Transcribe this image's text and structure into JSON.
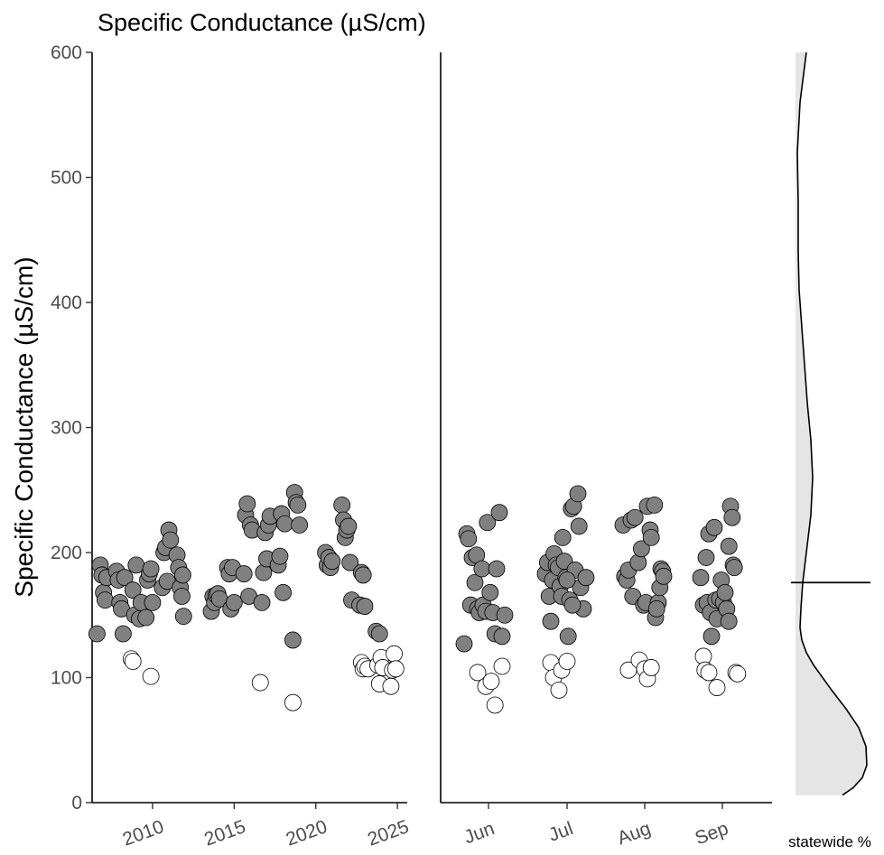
{
  "chart_data": {
    "type": "scatter",
    "title": "Specific Conductance (µS/cm)",
    "ylabel": "Specific Conductance (µS/cm)",
    "ylim": [
      0,
      600
    ],
    "yticks": [
      0,
      100,
      200,
      300,
      400,
      500,
      600
    ],
    "grid": false,
    "colors": {
      "filled": "#808080",
      "open": "#ffffff",
      "outline": "#000000",
      "density_fill": "#e5e5e5"
    },
    "panels": {
      "by_year": {
        "xlim": [
          2006.3,
          2025.6
        ],
        "xticks": [
          2010,
          2015,
          2020,
          2025
        ],
        "filled": [
          [
            2006.6,
            135
          ],
          [
            2006.8,
            190
          ],
          [
            2006.9,
            182
          ],
          [
            2007.0,
            168
          ],
          [
            2007.1,
            162
          ],
          [
            2007.2,
            180
          ],
          [
            2007.8,
            185
          ],
          [
            2007.9,
            178
          ],
          [
            2008.0,
            160
          ],
          [
            2008.1,
            155
          ],
          [
            2008.2,
            135
          ],
          [
            2008.3,
            180
          ],
          [
            2008.8,
            170
          ],
          [
            2008.9,
            150
          ],
          [
            2009.0,
            190
          ],
          [
            2009.2,
            147
          ],
          [
            2009.3,
            160
          ],
          [
            2009.6,
            148
          ],
          [
            2009.7,
            178
          ],
          [
            2009.8,
            183
          ],
          [
            2009.9,
            187
          ],
          [
            2010.0,
            160
          ],
          [
            2010.6,
            172
          ],
          [
            2010.7,
            200
          ],
          [
            2010.8,
            204
          ],
          [
            2010.9,
            177
          ],
          [
            2011.0,
            218
          ],
          [
            2011.1,
            210
          ],
          [
            2011.5,
            198
          ],
          [
            2011.6,
            188
          ],
          [
            2011.7,
            172
          ],
          [
            2011.8,
            165
          ],
          [
            2011.85,
            182
          ],
          [
            2011.9,
            149
          ],
          [
            2013.6,
            153
          ],
          [
            2013.7,
            165
          ],
          [
            2013.8,
            160
          ],
          [
            2013.9,
            166
          ],
          [
            2014.0,
            167
          ],
          [
            2014.1,
            163
          ],
          [
            2014.6,
            188
          ],
          [
            2014.7,
            183
          ],
          [
            2014.8,
            155
          ],
          [
            2014.9,
            188
          ],
          [
            2015.0,
            160
          ],
          [
            2015.6,
            183
          ],
          [
            2015.7,
            230
          ],
          [
            2015.8,
            239
          ],
          [
            2015.9,
            165
          ],
          [
            2016.0,
            222
          ],
          [
            2016.1,
            218
          ],
          [
            2016.7,
            160
          ],
          [
            2016.8,
            184
          ],
          [
            2016.9,
            216
          ],
          [
            2017.0,
            195
          ],
          [
            2017.1,
            222
          ],
          [
            2017.2,
            229
          ],
          [
            2017.7,
            190
          ],
          [
            2017.8,
            197
          ],
          [
            2017.9,
            231
          ],
          [
            2018.0,
            168
          ],
          [
            2018.1,
            223
          ],
          [
            2018.6,
            130
          ],
          [
            2018.7,
            248
          ],
          [
            2018.8,
            240
          ],
          [
            2018.9,
            238
          ],
          [
            2019.0,
            222
          ],
          [
            2020.6,
            200
          ],
          [
            2020.7,
            190
          ],
          [
            2020.8,
            196
          ],
          [
            2020.9,
            188
          ],
          [
            2021.0,
            193
          ],
          [
            2021.6,
            238
          ],
          [
            2021.7,
            226
          ],
          [
            2021.8,
            212
          ],
          [
            2021.9,
            218
          ],
          [
            2022.0,
            221
          ],
          [
            2022.1,
            192
          ],
          [
            2022.2,
            162
          ],
          [
            2022.7,
            158
          ],
          [
            2022.8,
            184
          ],
          [
            2022.9,
            182
          ],
          [
            2023.0,
            157
          ],
          [
            2023.7,
            137
          ],
          [
            2023.9,
            135
          ]
        ],
        "open": [
          [
            2008.7,
            115
          ],
          [
            2008.8,
            113
          ],
          [
            2009.9,
            101
          ],
          [
            2016.6,
            96
          ],
          [
            2018.6,
            80
          ],
          [
            2022.8,
            112
          ],
          [
            2022.9,
            107
          ],
          [
            2023.0,
            109
          ],
          [
            2023.2,
            107
          ],
          [
            2023.8,
            110
          ],
          [
            2023.9,
            95
          ],
          [
            2024.0,
            116
          ],
          [
            2024.1,
            108
          ],
          [
            2024.6,
            93
          ],
          [
            2024.7,
            106
          ],
          [
            2024.8,
            119
          ],
          [
            2024.9,
            107
          ]
        ]
      },
      "by_month": {
        "categories": [
          "Jun",
          "Jul",
          "Aug",
          "Sep"
        ],
        "filled": [
          [
            "Jun",
            -0.45,
            127
          ],
          [
            "Jun",
            -0.4,
            215
          ],
          [
            "Jun",
            -0.37,
            211
          ],
          [
            "Jun",
            -0.33,
            158
          ],
          [
            "Jun",
            -0.3,
            196
          ],
          [
            "Jun",
            -0.25,
            176
          ],
          [
            "Jun",
            -0.22,
            198
          ],
          [
            "Jun",
            -0.2,
            155
          ],
          [
            "Jun",
            -0.17,
            152
          ],
          [
            "Jun",
            -0.12,
            187
          ],
          [
            "Jun",
            -0.1,
            158
          ],
          [
            "Jun",
            -0.05,
            153
          ],
          [
            "Jun",
            -0.02,
            224
          ],
          [
            "Jun",
            0.03,
            168
          ],
          [
            "Jun",
            0.08,
            152
          ],
          [
            "Jun",
            0.12,
            135
          ],
          [
            "Jun",
            0.15,
            187
          ],
          [
            "Jun",
            0.2,
            232
          ],
          [
            "Jun",
            0.25,
            133
          ],
          [
            "Jun",
            0.3,
            150
          ],
          [
            "Jul",
            -0.4,
            183
          ],
          [
            "Jul",
            -0.36,
            192
          ],
          [
            "Jul",
            -0.33,
            165
          ],
          [
            "Jul",
            -0.3,
            145
          ],
          [
            "Jul",
            -0.27,
            178
          ],
          [
            "Jul",
            -0.24,
            199
          ],
          [
            "Jul",
            -0.2,
            190
          ],
          [
            "Jul",
            -0.16,
            188
          ],
          [
            "Jul",
            -0.13,
            173
          ],
          [
            "Jul",
            -0.1,
            165
          ],
          [
            "Jul",
            -0.08,
            212
          ],
          [
            "Jul",
            -0.05,
            193
          ],
          [
            "Jul",
            -0.02,
            180
          ],
          [
            "Jul",
            0.02,
            133
          ],
          [
            "Jul",
            0.05,
            162
          ],
          [
            "Jul",
            0.08,
            235
          ],
          [
            "Jul",
            0.12,
            237
          ],
          [
            "Jul",
            0.15,
            186
          ],
          [
            "Jul",
            0.2,
            247
          ],
          [
            "Jul",
            0.22,
            221
          ],
          [
            "Jul",
            0.25,
            172
          ],
          [
            "Jul",
            0.3,
            155
          ],
          [
            "Jul",
            0.35,
            180
          ],
          [
            "Jul",
            0.0,
            178
          ],
          [
            "Jul",
            0.1,
            158
          ],
          [
            "Aug",
            -0.4,
            222
          ],
          [
            "Aug",
            -0.37,
            181
          ],
          [
            "Aug",
            -0.33,
            178
          ],
          [
            "Aug",
            -0.3,
            186
          ],
          [
            "Aug",
            -0.25,
            226
          ],
          [
            "Aug",
            -0.22,
            165
          ],
          [
            "Aug",
            -0.18,
            228
          ],
          [
            "Aug",
            -0.12,
            192
          ],
          [
            "Aug",
            -0.06,
            203
          ],
          [
            "Aug",
            -0.02,
            158
          ],
          [
            "Aug",
            0.02,
            160
          ],
          [
            "Aug",
            0.05,
            237
          ],
          [
            "Aug",
            0.1,
            218
          ],
          [
            "Aug",
            0.12,
            212
          ],
          [
            "Aug",
            0.18,
            238
          ],
          [
            "Aug",
            0.2,
            148
          ],
          [
            "Aug",
            0.25,
            160
          ],
          [
            "Aug",
            0.28,
            172
          ],
          [
            "Aug",
            0.3,
            187
          ],
          [
            "Aug",
            0.33,
            185
          ],
          [
            "Aug",
            0.35,
            181
          ],
          [
            "Aug",
            0.22,
            155
          ],
          [
            "Sep",
            -0.4,
            180
          ],
          [
            "Sep",
            -0.35,
            158
          ],
          [
            "Sep",
            -0.3,
            196
          ],
          [
            "Sep",
            -0.28,
            160
          ],
          [
            "Sep",
            -0.25,
            215
          ],
          [
            "Sep",
            -0.22,
            152
          ],
          [
            "Sep",
            -0.2,
            133
          ],
          [
            "Sep",
            -0.15,
            220
          ],
          [
            "Sep",
            -0.12,
            162
          ],
          [
            "Sep",
            -0.1,
            147
          ],
          [
            "Sep",
            -0.05,
            163
          ],
          [
            "Sep",
            -0.02,
            178
          ],
          [
            "Sep",
            0.02,
            160
          ],
          [
            "Sep",
            0.05,
            168
          ],
          [
            "Sep",
            0.08,
            155
          ],
          [
            "Sep",
            0.12,
            205
          ],
          [
            "Sep",
            0.15,
            237
          ],
          [
            "Sep",
            0.18,
            228
          ],
          [
            "Sep",
            0.2,
            190
          ],
          [
            "Sep",
            0.22,
            188
          ],
          [
            "Sep",
            0.12,
            145
          ]
        ],
        "open": [
          [
            "Jun",
            -0.2,
            104
          ],
          [
            "Jun",
            -0.05,
            93
          ],
          [
            "Jun",
            0.05,
            97
          ],
          [
            "Jun",
            0.12,
            78
          ],
          [
            "Jun",
            0.25,
            109
          ],
          [
            "Jul",
            -0.3,
            112
          ],
          [
            "Jul",
            -0.25,
            100
          ],
          [
            "Jul",
            -0.15,
            90
          ],
          [
            "Jul",
            -0.1,
            106
          ],
          [
            "Jul",
            0.0,
            113
          ],
          [
            "Aug",
            -0.3,
            106
          ],
          [
            "Aug",
            -0.1,
            114
          ],
          [
            "Aug",
            0.0,
            107
          ],
          [
            "Aug",
            0.05,
            99
          ],
          [
            "Aug",
            0.12,
            108
          ],
          [
            "Sep",
            -0.35,
            117
          ],
          [
            "Sep",
            -0.32,
            106
          ],
          [
            "Sep",
            -0.25,
            104
          ],
          [
            "Sep",
            -0.1,
            92
          ],
          [
            "Sep",
            0.25,
            104
          ],
          [
            "Sep",
            0.28,
            103
          ]
        ]
      },
      "statewide": {
        "xlabel": "statewide %",
        "reference_line": 176,
        "density_y_range": [
          6,
          600
        ]
      }
    }
  }
}
